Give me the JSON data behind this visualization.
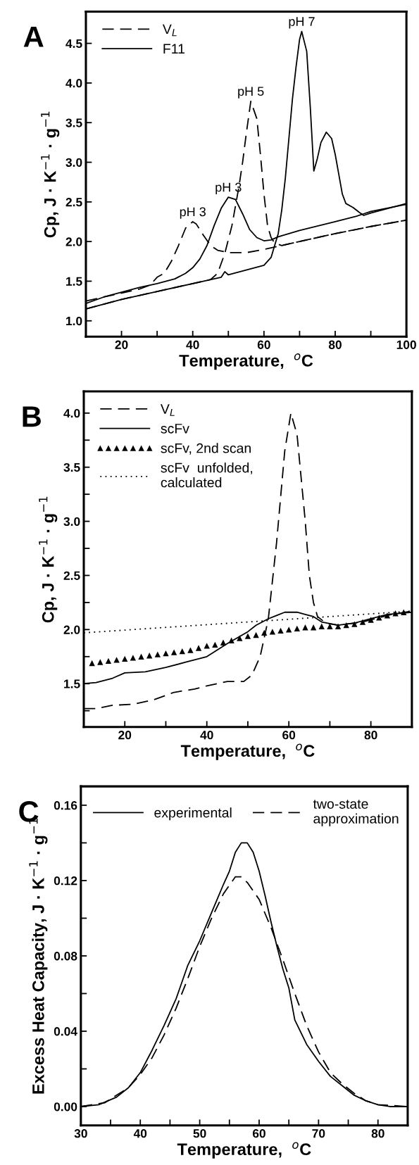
{
  "chart_data": [
    {
      "type": "line",
      "title": "A",
      "xlabel": "Temperature,  $^{o}$C",
      "ylabel": "Cp, J · K$^{−1}$ · g$^{−1}$",
      "xlim": [
        10,
        100
      ],
      "ylim": [
        0.8,
        4.9
      ],
      "xticks": [
        {
          "value": 10,
          "label": null
        },
        20,
        {
          "value": 30,
          "label": null
        },
        40,
        {
          "value": 50,
          "label": null
        },
        60,
        {
          "value": 70,
          "label": null
        },
        80,
        {
          "value": 90,
          "label": null
        },
        100
      ],
      "yticks": [
        {
          "value": 1,
          "label": "1.0"
        },
        1.5,
        {
          "value": 2,
          "label": "2.0"
        },
        2.5,
        {
          "value": 3,
          "label": "3.0"
        },
        3.5,
        {
          "value": 4,
          "label": "4.0"
        },
        4.5
      ],
      "legend": "top left",
      "annotations": [
        {
          "text": "pH 3",
          "x": 40,
          "y": 2.25
        },
        {
          "text": "pH 3",
          "x": 50,
          "y": 2.56
        },
        {
          "text": "pH 5",
          "x": 56.3,
          "y": 3.77
        },
        {
          "text": "pH 7",
          "x": 70.6,
          "y": 4.65
        }
      ],
      "series": [
        {
          "name": "V$_{L}$",
          "color": "#000000",
          "line_style": "dashed",
          "x": [
            10,
            15,
            20,
            25,
            28,
            30,
            32,
            34,
            36,
            38,
            40,
            41,
            43,
            45,
            47,
            50,
            55,
            60,
            65,
            70,
            80,
            90,
            100
          ],
          "values": [
            1.25,
            1.3,
            1.35,
            1.4,
            1.45,
            1.55,
            1.6,
            1.75,
            1.95,
            2.17,
            2.25,
            2.22,
            2.08,
            1.95,
            1.89,
            1.86,
            1.86,
            1.9,
            1.95,
            2.0,
            2.1,
            2.19,
            2.27
          ]
        },
        {
          "name": "F11",
          "color": "#000000",
          "line_style": "solid",
          "x": [
            10,
            15,
            20,
            25,
            30,
            35,
            38,
            40,
            42,
            44,
            46,
            48,
            50,
            52,
            54,
            56,
            58,
            60,
            62,
            64,
            70,
            80,
            86,
            88,
            90,
            100
          ],
          "values": [
            1.22,
            1.3,
            1.36,
            1.42,
            1.47,
            1.53,
            1.6,
            1.67,
            1.78,
            1.95,
            2.2,
            2.42,
            2.56,
            2.53,
            2.35,
            2.15,
            2.05,
            2.01,
            2.02,
            2.06,
            2.14,
            2.25,
            2.32,
            2.35,
            2.38,
            2.47
          ]
        },
        {
          "color": "#000000",
          "line_style": "dashed",
          "x": [
            10,
            20,
            30,
            40,
            45,
            47,
            49,
            51,
            52,
            53,
            54,
            55,
            56.3,
            58,
            59,
            60,
            61,
            62,
            63,
            65,
            70,
            80,
            90,
            100
          ],
          "values": [
            1.15,
            1.27,
            1.37,
            1.47,
            1.52,
            1.6,
            1.85,
            2.2,
            2.45,
            2.7,
            3.0,
            3.35,
            3.77,
            3.55,
            3.1,
            2.6,
            2.2,
            2.05,
            1.98,
            1.95,
            2.0,
            2.1,
            2.19,
            2.27
          ]
        },
        {
          "color": "#000000",
          "line_style": "solid",
          "x": [
            10,
            20,
            30,
            40,
            48,
            49,
            50,
            55,
            60,
            62,
            63,
            64,
            65,
            66,
            67,
            68,
            69,
            70,
            70.6,
            72,
            73,
            74,
            75,
            76,
            77.5,
            79,
            80,
            81,
            82,
            83,
            85,
            87,
            88,
            90,
            100
          ],
          "values": [
            1.15,
            1.27,
            1.37,
            1.47,
            1.55,
            1.62,
            1.58,
            1.64,
            1.7,
            1.8,
            1.95,
            2.1,
            2.4,
            2.8,
            3.3,
            3.8,
            4.2,
            4.55,
            4.65,
            4.4,
            3.7,
            2.89,
            3.05,
            3.25,
            3.38,
            3.3,
            3.1,
            2.85,
            2.6,
            2.48,
            2.43,
            2.36,
            2.33,
            2.36,
            2.48
          ]
        }
      ]
    },
    {
      "type": "line",
      "title": "B",
      "xlabel": "Temperature,  $^{o}$C",
      "ylabel": "Cp, J · K$^{−1}$ · g$^{−1}$",
      "xlim": [
        10,
        90
      ],
      "ylim": [
        1.1,
        4.2
      ],
      "xticks": [
        20,
        {
          "value": 30,
          "label": null
        },
        40,
        {
          "value": 50,
          "label": null
        },
        60,
        {
          "value": 70,
          "label": null
        },
        80
      ],
      "yticks": [
        {
          "value": 1.25,
          "label": null
        },
        1.5,
        {
          "value": 1.75,
          "label": null
        },
        {
          "value": 2,
          "label": "2.0"
        },
        {
          "value": 2.25,
          "label": null
        },
        2.5,
        {
          "value": 2.75,
          "label": null
        },
        {
          "value": 3,
          "label": "3.0"
        },
        {
          "value": 3.25,
          "label": null
        },
        3.5,
        {
          "value": 3.75,
          "label": null
        },
        {
          "value": 4,
          "label": "4.0"
        }
      ],
      "legend": "top left",
      "series": [
        {
          "name": "V$_{L}$",
          "color": "#000000",
          "line_style": "dashed",
          "x": [
            10,
            13,
            17,
            22,
            27,
            32,
            37,
            40,
            45,
            49,
            51,
            53,
            55,
            57,
            59,
            60.5,
            62,
            64,
            65,
            66,
            67,
            69,
            72,
            78,
            85,
            90
          ],
          "values": [
            1.27,
            1.27,
            1.3,
            1.31,
            1.35,
            1.42,
            1.45,
            1.48,
            1.52,
            1.52,
            1.58,
            1.75,
            2.1,
            2.8,
            3.65,
            4.0,
            3.8,
            3.0,
            2.5,
            2.25,
            2.12,
            2.06,
            2.04,
            2.07,
            2.14,
            2.17
          ]
        },
        {
          "name": "scFv",
          "color": "#000000",
          "line_style": "solid",
          "x": [
            10,
            13,
            17,
            20,
            25,
            30,
            35,
            40,
            45,
            50,
            52,
            55,
            57,
            59,
            62,
            64,
            66,
            68,
            72,
            76,
            80,
            84,
            90
          ],
          "values": [
            1.5,
            1.51,
            1.55,
            1.6,
            1.61,
            1.65,
            1.7,
            1.75,
            1.87,
            1.98,
            2.04,
            2.1,
            2.13,
            2.16,
            2.16,
            2.14,
            2.12,
            2.07,
            2.04,
            2.06,
            2.1,
            2.14,
            2.16
          ]
        },
        {
          "name": "scFv, 2nd scan",
          "type": "scatter",
          "marker": "triangle",
          "color": "#000000",
          "x": [
            12,
            14,
            16,
            18,
            20,
            22,
            24,
            26,
            28,
            30,
            32,
            34,
            36,
            38,
            40,
            42,
            44,
            46,
            48,
            50,
            52,
            54,
            56,
            58,
            60,
            62,
            64,
            66,
            68,
            70,
            72,
            74,
            76,
            78,
            80,
            82,
            84,
            86,
            88
          ],
          "values": [
            1.69,
            1.7,
            1.71,
            1.72,
            1.73,
            1.74,
            1.75,
            1.76,
            1.77,
            1.78,
            1.79,
            1.8,
            1.81,
            1.83,
            1.85,
            1.86,
            1.88,
            1.9,
            1.92,
            1.94,
            1.95,
            1.97,
            1.98,
            1.99,
            2.0,
            2.01,
            2.02,
            2.02,
            2.03,
            2.03,
            2.03,
            2.04,
            2.05,
            2.07,
            2.09,
            2.11,
            2.13,
            2.15,
            2.16
          ]
        },
        {
          "name": "scFv  unfolded,\ncalculated",
          "color": "#000000",
          "line_style": "dotted",
          "x": [
            10,
            90
          ],
          "values": [
            1.97,
            2.17
          ]
        }
      ]
    },
    {
      "type": "line",
      "title": "C",
      "xlabel": "Temperature,  $^{o}$C",
      "ylabel": "Excess Heat Capacity, J · K$^{−1}$ · g$^{−1}$",
      "xlim": [
        30,
        85
      ],
      "ylim": [
        -0.01,
        0.17
      ],
      "xticks": [
        30,
        {
          "value": 35,
          "label": null
        },
        40,
        {
          "value": 45,
          "label": null
        },
        50,
        {
          "value": 55,
          "label": null
        },
        60,
        {
          "value": 65,
          "label": null
        },
        70,
        {
          "value": 75,
          "label": null
        },
        80
      ],
      "yticks": [
        {
          "value": 0.0,
          "label": "0.00"
        },
        {
          "value": 0.02,
          "label": null
        },
        {
          "value": 0.04,
          "label": "0.04"
        },
        {
          "value": 0.06,
          "label": null
        },
        {
          "value": 0.08,
          "label": "0.08"
        },
        {
          "value": 0.1,
          "label": null
        },
        {
          "value": 0.12,
          "label": "0.12"
        },
        {
          "value": 0.14,
          "label": null
        },
        {
          "value": 0.16,
          "label": "0.16"
        }
      ],
      "legend": "top",
      "series": [
        {
          "name": "experimental",
          "color": "#000000",
          "line_style": "solid",
          "x": [
            30,
            33,
            36,
            38,
            40,
            42,
            44,
            46,
            48,
            50,
            52,
            54,
            55,
            56,
            57,
            58,
            59,
            60,
            61,
            62,
            63,
            64,
            65,
            66,
            68,
            70,
            72,
            74,
            76,
            78,
            80,
            82,
            85
          ],
          "values": [
            0,
            0.001,
            0.005,
            0.01,
            0.018,
            0.03,
            0.043,
            0.057,
            0.075,
            0.088,
            0.103,
            0.118,
            0.125,
            0.135,
            0.14,
            0.14,
            0.135,
            0.125,
            0.112,
            0.098,
            0.085,
            0.073,
            0.063,
            0.046,
            0.033,
            0.024,
            0.016,
            0.011,
            0.006,
            0.003,
            0.001,
            0,
            0
          ]
        },
        {
          "name": "two-state\napproximation",
          "color": "#000000",
          "line_style": "dashed",
          "x": [
            30,
            34,
            38,
            40,
            42,
            44,
            46,
            48,
            50,
            52,
            54,
            56,
            57,
            58,
            60,
            62,
            64,
            66,
            68,
            70,
            72,
            74,
            76,
            78,
            80,
            85
          ],
          "values": [
            0,
            0.002,
            0.01,
            0.017,
            0.026,
            0.038,
            0.052,
            0.068,
            0.085,
            0.1,
            0.113,
            0.122,
            0.122,
            0.119,
            0.11,
            0.095,
            0.078,
            0.06,
            0.043,
            0.029,
            0.018,
            0.012,
            0.007,
            0.003,
            0.001,
            0
          ]
        }
      ]
    }
  ]
}
